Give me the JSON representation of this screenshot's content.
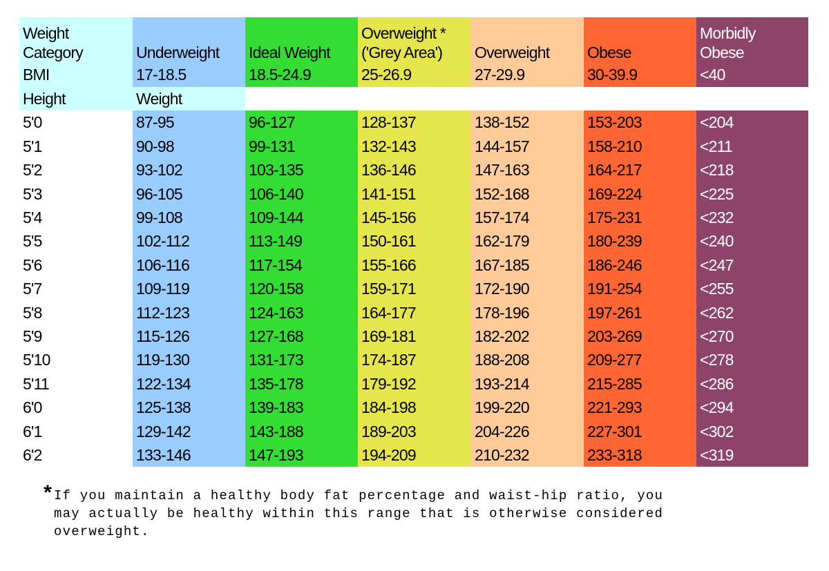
{
  "table": {
    "header": [
      [
        "Weight",
        "Category"
      ],
      [
        "Underweight"
      ],
      [
        "Ideal Weight"
      ],
      [
        "Overweight *",
        "('Grey Area')"
      ],
      [
        "Overweight"
      ],
      [
        "Obese"
      ],
      [
        "Morbidly",
        "Obese"
      ]
    ],
    "bmi": [
      "BMI",
      "17-18.5",
      "18.5-24.9",
      "25-26.9",
      "27-29.9",
      "30-39.9",
      "<40"
    ],
    "subheader": [
      "Height",
      "Weight"
    ],
    "rows": [
      [
        "5'0",
        "87-95",
        "96-127",
        "128-137",
        "138-152",
        "153-203",
        "<204"
      ],
      [
        "5'1",
        "90-98",
        "99-131",
        "132-143",
        "144-157",
        "158-210",
        "<211"
      ],
      [
        "5'2",
        "93-102",
        "103-135",
        "136-146",
        "147-163",
        "164-217",
        "<218"
      ],
      [
        "5'3",
        "96-105",
        "106-140",
        "141-151",
        "152-168",
        "169-224",
        "<225"
      ],
      [
        "5'4",
        "99-108",
        "109-144",
        "145-156",
        "157-174",
        "175-231",
        "<232"
      ],
      [
        "5'5",
        "102-112",
        "113-149",
        "150-161",
        "162-179",
        "180-239",
        "<240"
      ],
      [
        "5'6",
        "106-116",
        "117-154",
        "155-166",
        "167-185",
        "186-246",
        "<247"
      ],
      [
        "5'7",
        "109-119",
        "120-158",
        "159-171",
        "172-190",
        "191-254",
        "<255"
      ],
      [
        "5'8",
        "112-123",
        "124-163",
        "164-177",
        "178-196",
        "197-261",
        "<262"
      ],
      [
        "5'9",
        "115-126",
        "127-168",
        "169-181",
        "182-202",
        "203-269",
        "<270"
      ],
      [
        "5'10",
        "119-130",
        "131-173",
        "174-187",
        "188-208",
        "209-277",
        "<278"
      ],
      [
        "5'11",
        "122-134",
        "135-178",
        "179-192",
        "193-214",
        "215-285",
        "<286"
      ],
      [
        "6'0",
        "125-138",
        "139-183",
        "184-198",
        "199-220",
        "221-293",
        "<294"
      ],
      [
        "6'1",
        "129-142",
        "143-188",
        "189-203",
        "204-226",
        "227-301",
        "<302"
      ],
      [
        "6'2",
        "133-146",
        "147-193",
        "194-209",
        "210-232",
        "233-318",
        "<319"
      ]
    ]
  },
  "footnote": {
    "marker": "*",
    "lines": [
      "If you maintain a healthy body fat percentage and waist-hip ratio, you",
      "may actually be healthy within this range that is otherwise considered",
      "overweight."
    ]
  }
}
